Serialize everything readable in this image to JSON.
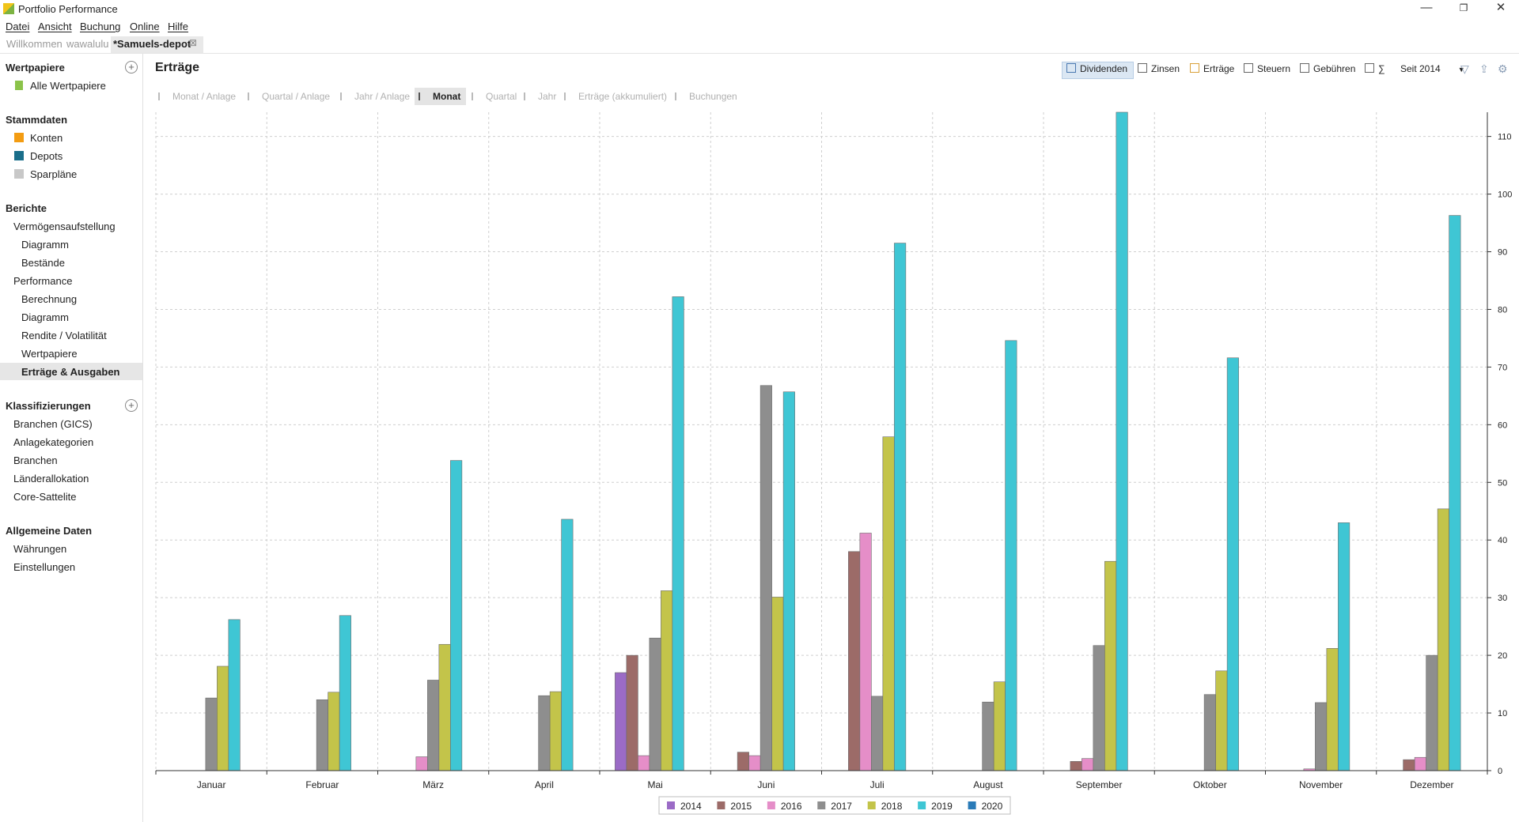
{
  "window": {
    "title": "Portfolio Performance"
  },
  "menu": [
    "Datei",
    "Ansicht",
    "Buchung",
    "Online",
    "Hilfe"
  ],
  "tabs": [
    {
      "label": "Willkommen",
      "active": false
    },
    {
      "label": "wawalulu",
      "active": false
    },
    {
      "label": "*Samuels-depot",
      "active": true
    }
  ],
  "sidebar": {
    "wertpapiere": {
      "title": "Wertpapiere",
      "items": [
        "Alle Wertpapiere"
      ]
    },
    "stammdaten": {
      "title": "Stammdaten",
      "items": [
        "Konten",
        "Depots",
        "Sparpläne"
      ]
    },
    "berichte": {
      "title": "Berichte",
      "items": [
        "Vermögensaufstellung",
        "Diagramm",
        "Bestände",
        "Performance",
        "Berechnung",
        "Diagramm",
        "Rendite / Volatilität",
        "Wertpapiere",
        "Erträge & Ausgaben"
      ],
      "selected": "Erträge & Ausgaben"
    },
    "klassifizierungen": {
      "title": "Klassifizierungen",
      "items": [
        "Branchen (GICS)",
        "Anlagekategorien",
        "Branchen",
        "Länderallokation",
        "Core-Sattelite"
      ]
    },
    "allgemein": {
      "title": "Allgemeine Daten",
      "items": [
        "Währungen",
        "Einstellungen"
      ]
    }
  },
  "main": {
    "title": "Erträge",
    "toggles": [
      {
        "label": "Dividenden",
        "checked": true
      },
      {
        "label": "Zinsen",
        "checked": false
      },
      {
        "label": "Erträge",
        "checked": false
      },
      {
        "label": "Steuern",
        "checked": false
      },
      {
        "label": "Gebühren",
        "checked": false
      },
      {
        "label": "∑",
        "checked": false
      }
    ],
    "period": "Seit 2014",
    "views": [
      "Monat / Anlage",
      "Quartal / Anlage",
      "Jahr / Anlage",
      "Monat",
      "Quartal",
      "Jahr",
      "Erträge (akkumuliert)",
      "Buchungen"
    ],
    "active_view": "Monat"
  },
  "colors": {
    "2014": "#9b6bc6",
    "2015": "#9c6b68",
    "2016": "#e58ec8",
    "2017": "#8e8e8e",
    "2018": "#c3c44a",
    "2019": "#3fc6d4",
    "2020": "#2a7bb8"
  },
  "chart_data": {
    "type": "bar",
    "categories": [
      "Januar",
      "Februar",
      "März",
      "April",
      "Mai",
      "Juni",
      "Juli",
      "August",
      "September",
      "Oktober",
      "November",
      "Dezember"
    ],
    "series": [
      {
        "name": "2014",
        "values": [
          0,
          0,
          0,
          0,
          17,
          0,
          0,
          0,
          0,
          0,
          0,
          0
        ]
      },
      {
        "name": "2015",
        "values": [
          0,
          0,
          0,
          0,
          20,
          3.2,
          38,
          0,
          1.6,
          0,
          0,
          1.9
        ]
      },
      {
        "name": "2016",
        "values": [
          0,
          0,
          2.4,
          0,
          2.6,
          2.6,
          41.2,
          0,
          2.1,
          0,
          0.3,
          2.3
        ]
      },
      {
        "name": "2017",
        "values": [
          12.6,
          12.3,
          15.7,
          13,
          23,
          66.8,
          12.9,
          11.9,
          21.7,
          13.2,
          11.8,
          20
        ]
      },
      {
        "name": "2018",
        "values": [
          18.1,
          13.6,
          21.9,
          13.7,
          31.2,
          30.1,
          57.9,
          15.4,
          36.3,
          17.3,
          21.2,
          45.4
        ]
      },
      {
        "name": "2019",
        "values": [
          26.2,
          26.9,
          53.8,
          43.6,
          82.2,
          65.7,
          91.5,
          74.6,
          114.2,
          71.6,
          43,
          96.3
        ]
      },
      {
        "name": "2020",
        "values": [
          0,
          0,
          0,
          0,
          0,
          0,
          0,
          0,
          0,
          0,
          0,
          0
        ]
      }
    ],
    "ylim": [
      0,
      114.2
    ],
    "yticks": [
      0,
      10,
      20,
      30,
      40,
      50,
      60,
      70,
      80,
      90,
      100,
      110
    ],
    "y_axis_side": "right",
    "grid": true,
    "legend": "bottom-center"
  }
}
